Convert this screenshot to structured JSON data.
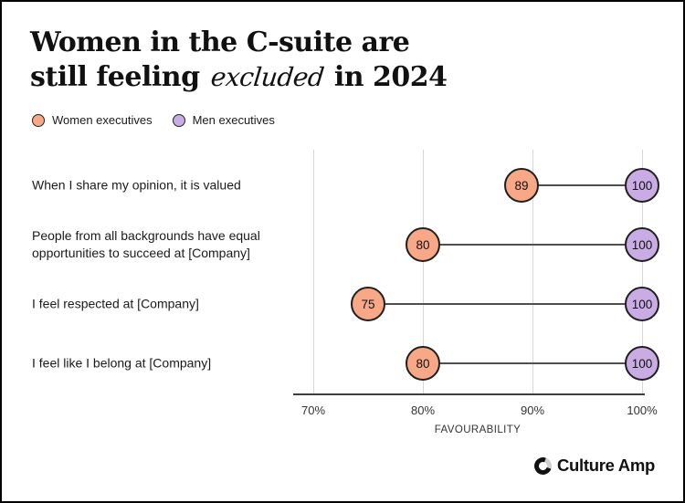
{
  "header": {
    "title_line1": "Women in the C-suite are",
    "title_line2_prefix": "still feeling",
    "title_line2_script": "excluded",
    "title_line2_suffix": "in 2024"
  },
  "legend": {
    "items": [
      {
        "label": "Women executives",
        "color": "#F8A886"
      },
      {
        "label": "Men executives",
        "color": "#C9ACE4"
      }
    ]
  },
  "chart_data": {
    "type": "dumbbell",
    "categories": [
      "When I share my opinion, it is valued",
      "People from all backgrounds have equal opportunities to succeed at [Company]",
      "I feel respected at [Company]",
      "I feel like I belong at [Company]"
    ],
    "series": [
      {
        "name": "Women executives",
        "color": "#F8A886",
        "values": [
          89,
          80,
          75,
          80
        ]
      },
      {
        "name": "Men executives",
        "color": "#C9ACE4",
        "values": [
          100,
          100,
          100,
          100
        ]
      }
    ],
    "xlabel": "FAVOURABILITY",
    "x_ticks": [
      {
        "label": "70%",
        "value": 70
      },
      {
        "label": "80%",
        "value": 80
      },
      {
        "label": "90%",
        "value": 90
      },
      {
        "label": "100%",
        "value": 100
      }
    ],
    "xlim": [
      70,
      100
    ],
    "grid": "vertical",
    "legend_position": "top-left",
    "colors": {
      "bubble_border": "#1f1f1f",
      "connector": "#4f4f4f",
      "gridline": "#d6d6d6",
      "axis": "#3d3d3d"
    }
  },
  "footer": {
    "brand": "Culture Amp"
  }
}
